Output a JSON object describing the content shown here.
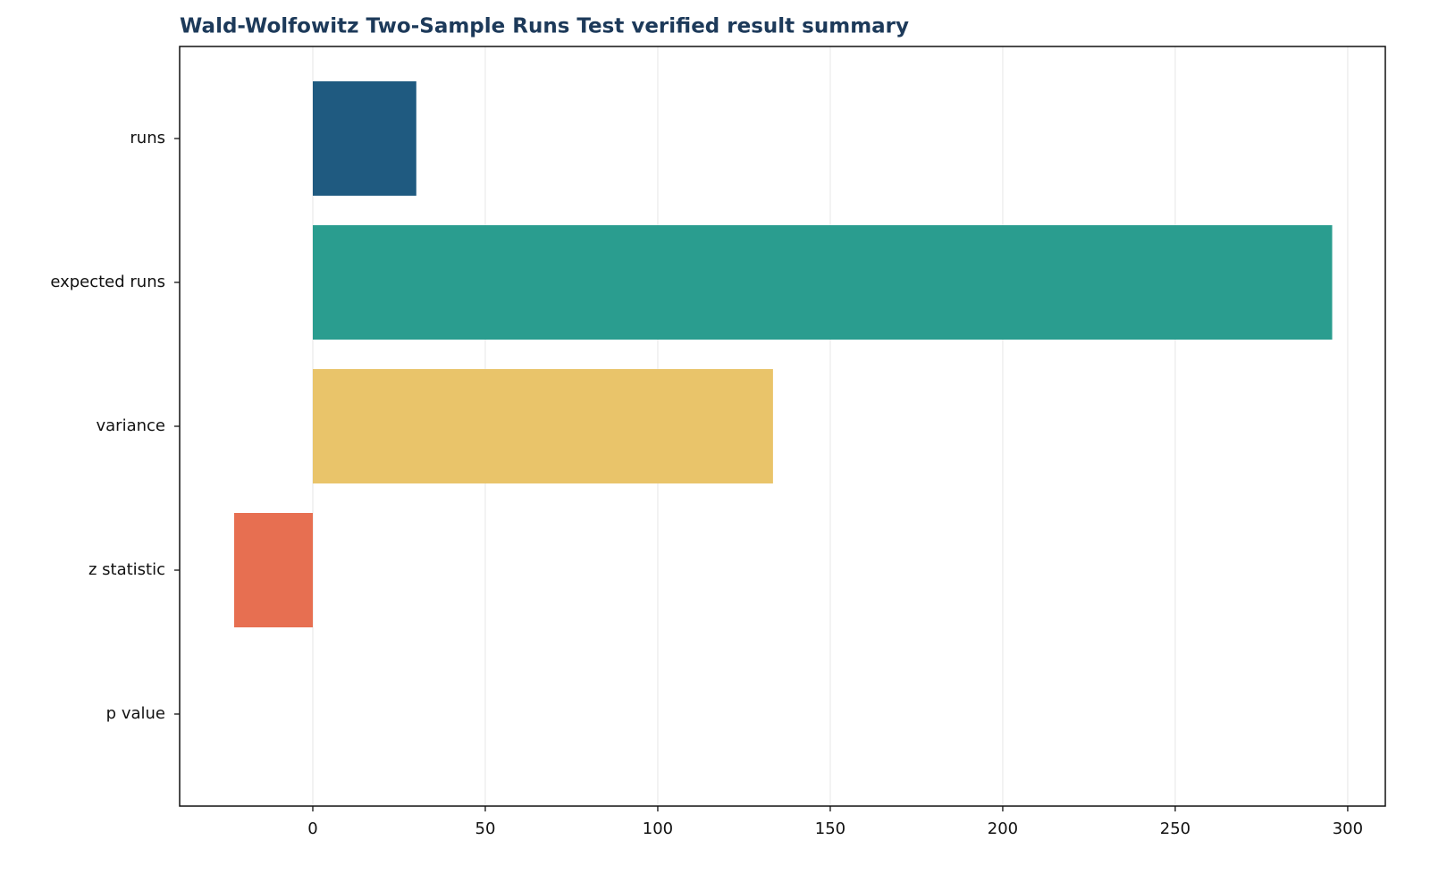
{
  "chart_data": {
    "type": "bar",
    "orientation": "horizontal",
    "title": "Wald-Wolfowitz Two-Sample Runs Test verified result summary",
    "categories": [
      "runs",
      "expected runs",
      "variance",
      "z statistic",
      "p value"
    ],
    "values": [
      30,
      295.5,
      133.4,
      -22.8,
      0
    ],
    "colors": [
      "#1f5a80",
      "#2a9d8f",
      "#e9c46a",
      "#e76f51",
      "#264653"
    ],
    "xlim": [
      -38.6,
      310.9
    ],
    "xticks": [
      0,
      50,
      100,
      150,
      200,
      250,
      300
    ],
    "grid": true
  }
}
